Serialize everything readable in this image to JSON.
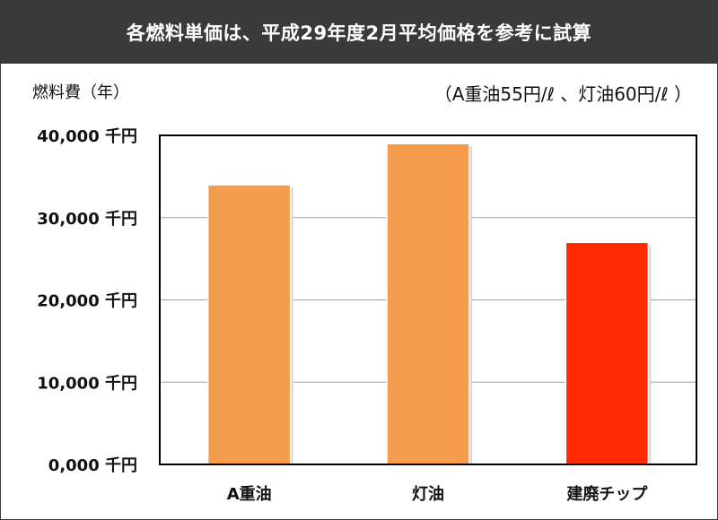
{
  "header": {
    "title": "各燃料単価は、平成29年度2月平均価格を参考に試算"
  },
  "note": "（A重油55円/ℓ 、灯油60円/ℓ ）",
  "colors": {
    "header_bg": "#3a3a3a",
    "bar_orange": "#f59b4c",
    "bar_red": "#ff2a00",
    "grid": "#a0a0a0"
  },
  "chart_data": {
    "type": "bar",
    "ylabel": "燃料費（年）",
    "categories": [
      "A重油",
      "灯油",
      "建廃チップ"
    ],
    "values": [
      34000,
      39000,
      27000
    ],
    "unit": "千円",
    "ylim": [
      0,
      40000
    ],
    "yticks": [
      0,
      10000,
      20000,
      30000,
      40000
    ],
    "ytick_labels": [
      "0,000 千円",
      "10,000 千円",
      "20,000 千円",
      "30,000 千円",
      "40,000 千円"
    ],
    "bar_colors": [
      "#f59b4c",
      "#f59b4c",
      "#ff2a00"
    ],
    "grid": true,
    "legend": "none"
  }
}
